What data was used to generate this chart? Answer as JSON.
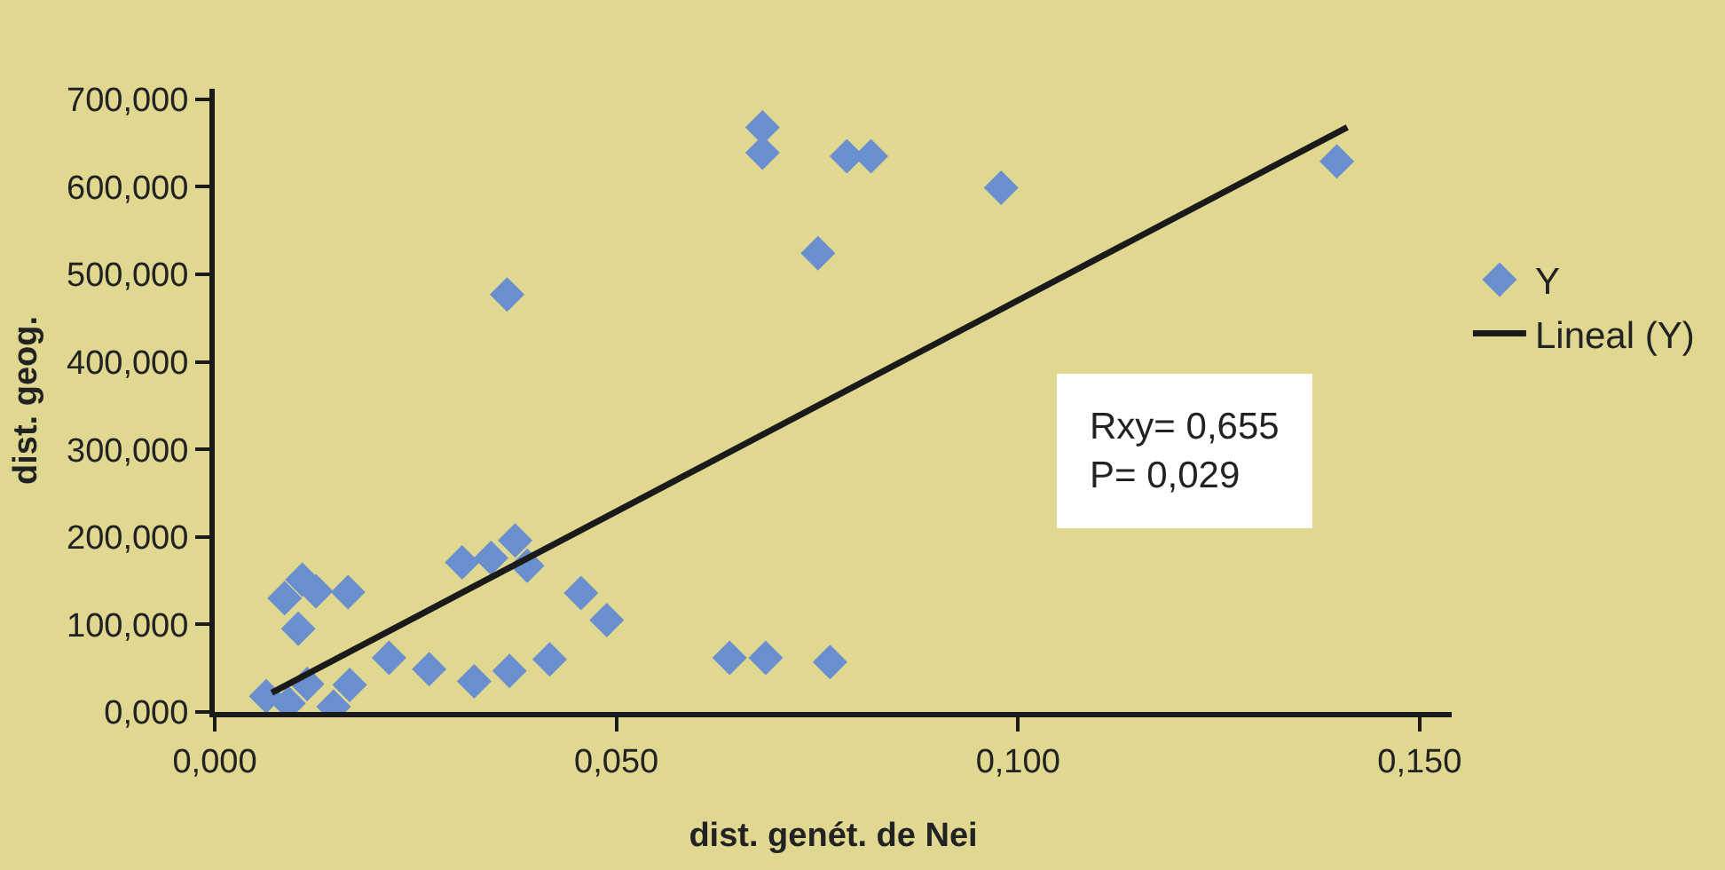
{
  "chart_data": {
    "type": "scatter",
    "xlabel": "dist. genét. de Nei",
    "ylabel": "dist. geog.",
    "xlim": [
      0,
      0.154
    ],
    "ylim": [
      0,
      712
    ],
    "xticks": [
      {
        "value": 0,
        "label": "0,000"
      },
      {
        "value": 0.05,
        "label": "0,050"
      },
      {
        "value": 0.1,
        "label": "0,100"
      },
      {
        "value": 0.15,
        "label": "0,150"
      }
    ],
    "yticks": [
      {
        "value": 0,
        "label": "0,000"
      },
      {
        "value": 100,
        "label": "100,000"
      },
      {
        "value": 200,
        "label": "200,000"
      },
      {
        "value": 300,
        "label": "300,000"
      },
      {
        "value": 400,
        "label": "400,000"
      },
      {
        "value": 500,
        "label": "500,000"
      },
      {
        "value": 600,
        "label": "600,000"
      },
      {
        "value": 700,
        "label": "700,000"
      }
    ],
    "grid": false,
    "legend": "right",
    "marker": "diamond",
    "annotations": [
      "Rxy= 0,655\nP= 0,029"
    ],
    "series": [
      {
        "name": "Y",
        "color": "#6a8fcf",
        "x": [
          0.0682,
          0.0682,
          0.0787,
          0.0817,
          0.0751,
          0.0364,
          0.0308,
          0.0344,
          0.0374,
          0.0389,
          0.0456,
          0.0488,
          0.0087,
          0.0109,
          0.0126,
          0.0166,
          0.0104,
          0.0217,
          0.0267,
          0.0323,
          0.0367,
          0.0417,
          0.0641,
          0.0686,
          0.0766,
          0.0064,
          0.0092,
          0.0115,
          0.0148,
          0.0168,
          0.1397,
          0.0979
        ],
        "values": [
          668,
          639,
          635,
          635,
          524,
          477,
          171,
          176,
          196,
          167,
          136,
          105,
          130,
          151,
          138,
          137,
          95,
          62,
          49,
          35,
          47,
          60,
          62,
          62,
          57,
          18,
          10,
          32,
          6,
          31,
          629,
          599
        ]
      },
      {
        "name": "Lineal (Y)",
        "type": "line",
        "color": "#1a1a1a",
        "x": [
          0.0071,
          0.141
        ],
        "values": [
          22,
          668
        ],
        "marker": "none",
        "line_style": "solid"
      }
    ]
  }
}
